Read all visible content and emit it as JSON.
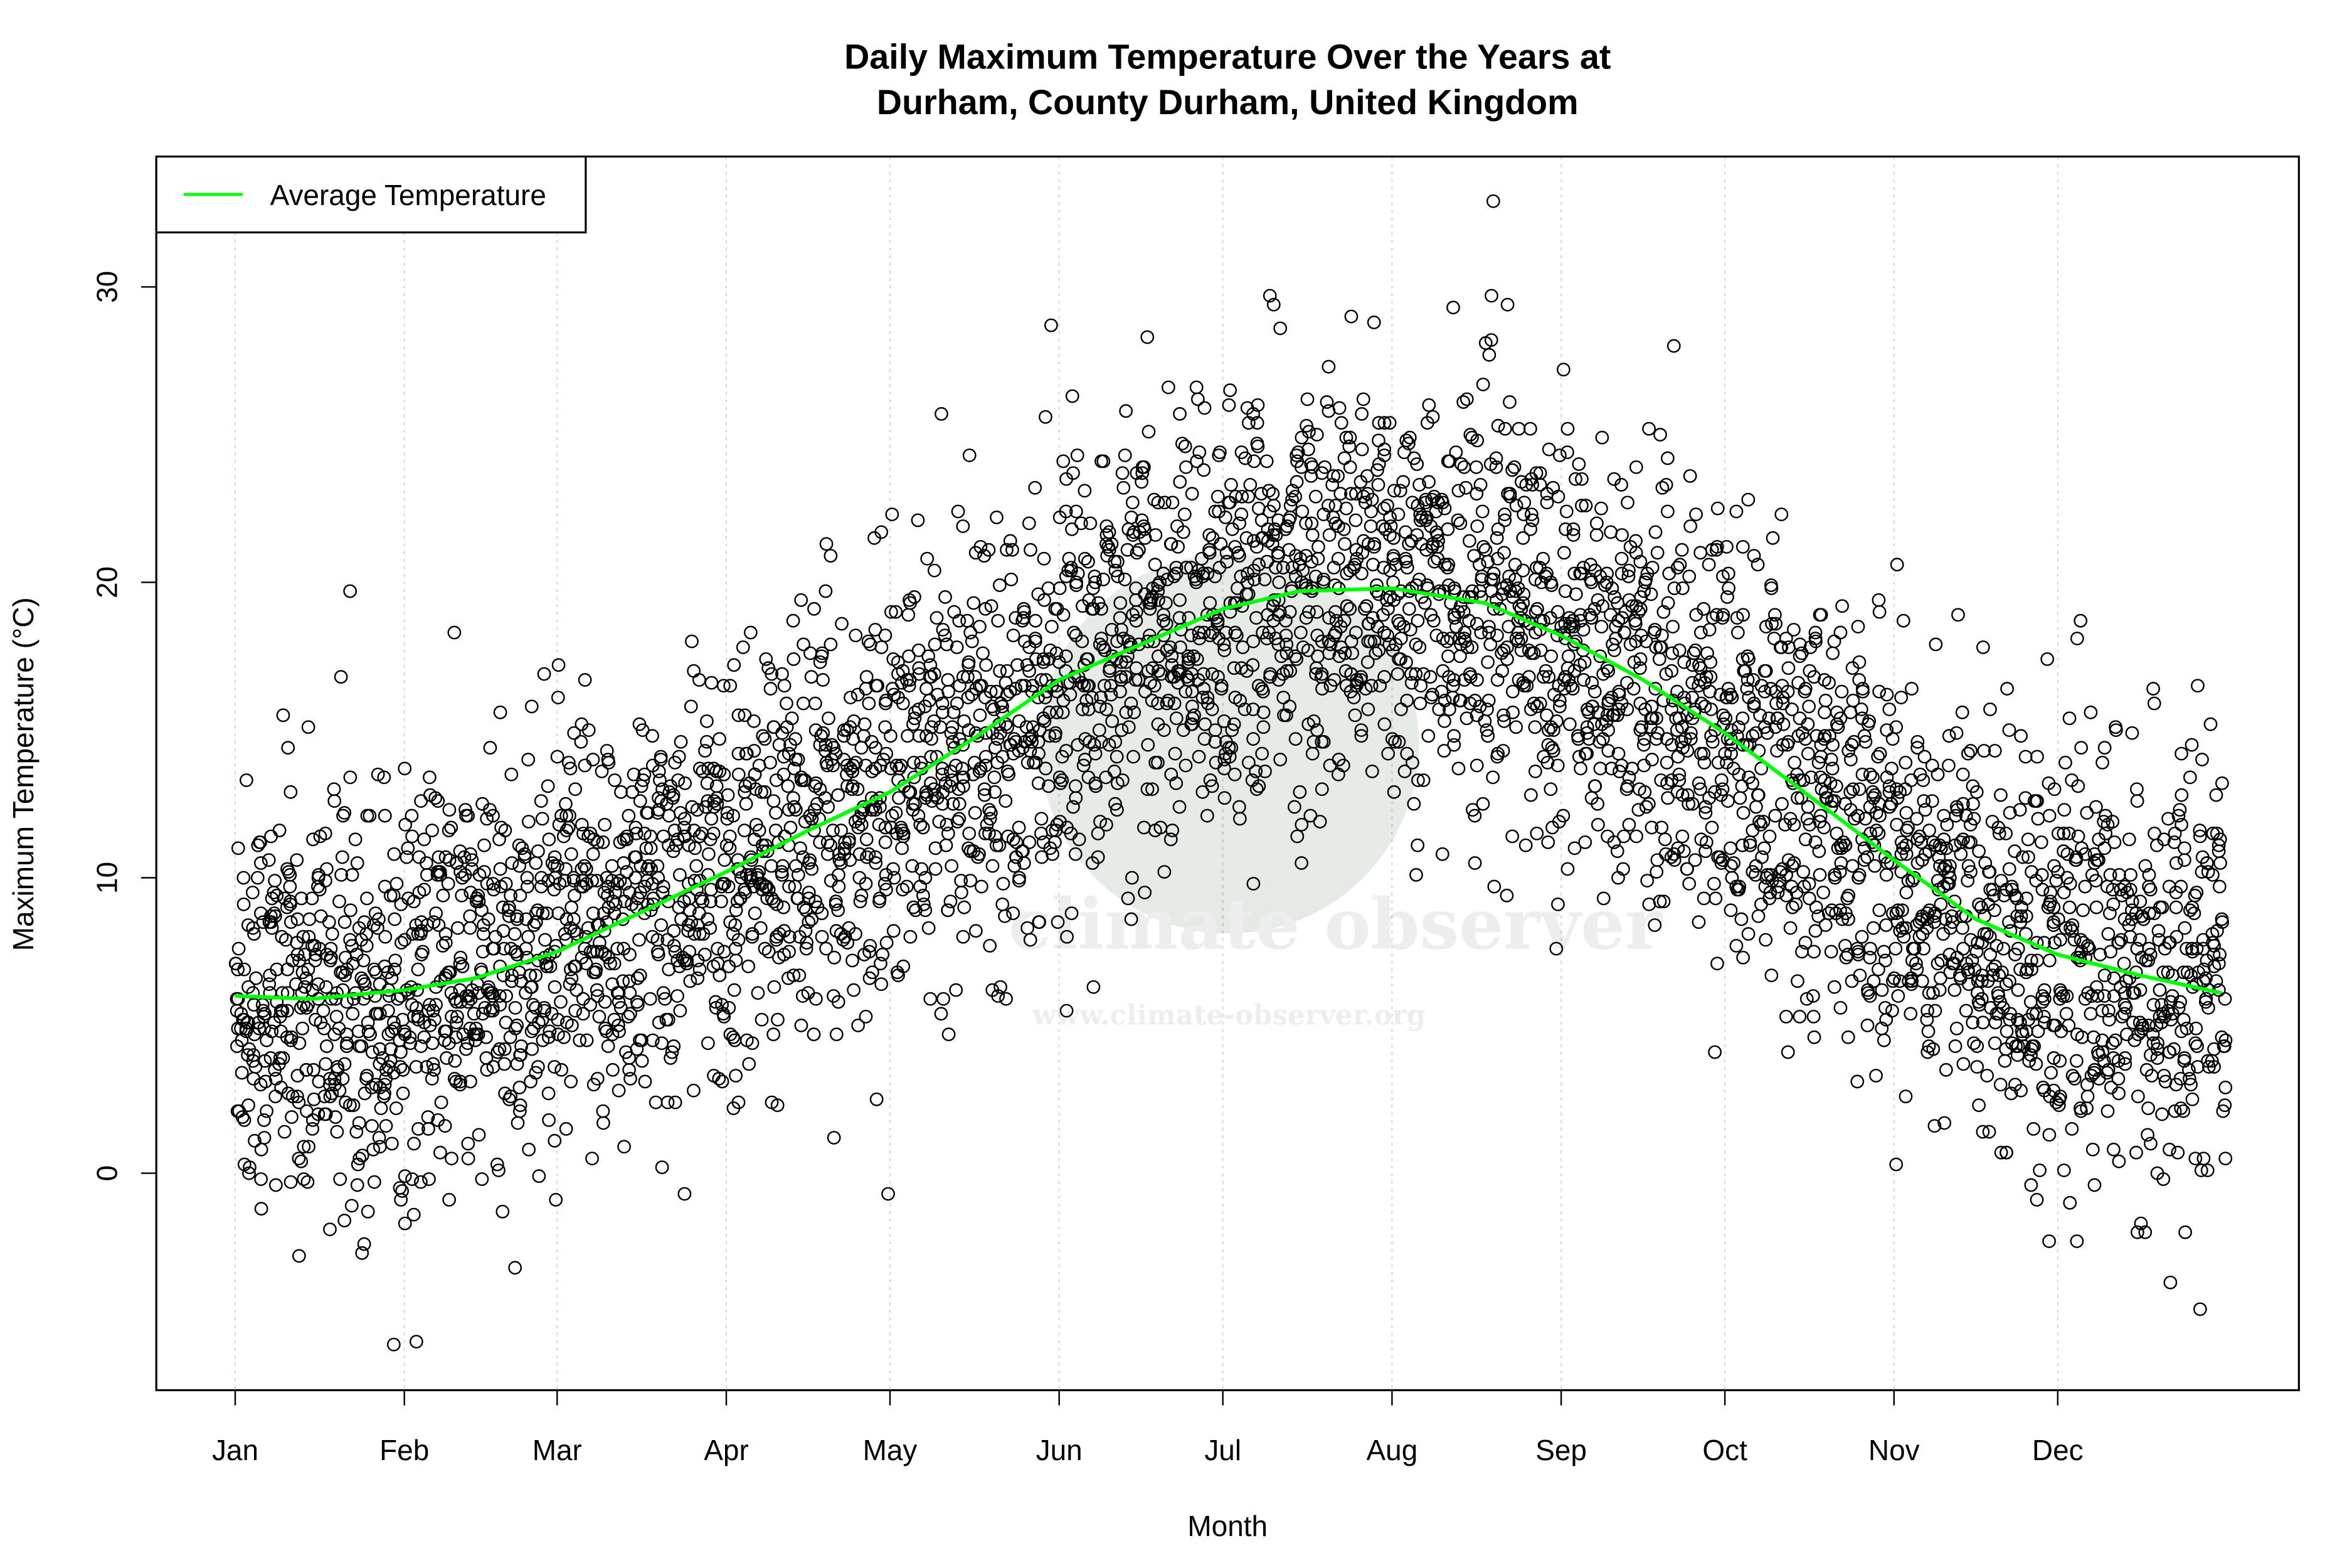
{
  "chart_data": {
    "type": "scatter",
    "title": "Daily Maximum Temperature Over the Years at\nDurham, County Durham, United Kingdom",
    "title_lines": [
      "Daily Maximum Temperature Over the Years at",
      "Durham, County Durham, United Kingdom"
    ],
    "xlabel": "Month",
    "ylabel": "Maximum Temperature (°C)",
    "x_unit": "day of year",
    "x_ticks": [
      {
        "label": "Jan",
        "day": 1
      },
      {
        "label": "Feb",
        "day": 32
      },
      {
        "label": "Mar",
        "day": 60
      },
      {
        "label": "Apr",
        "day": 91
      },
      {
        "label": "May",
        "day": 121
      },
      {
        "label": "Jun",
        "day": 152
      },
      {
        "label": "Jul",
        "day": 182
      },
      {
        "label": "Aug",
        "day": 213
      },
      {
        "label": "Sep",
        "day": 244
      },
      {
        "label": "Oct",
        "day": 274
      },
      {
        "label": "Nov",
        "day": 305
      },
      {
        "label": "Dec",
        "day": 335
      }
    ],
    "xlim": [
      1,
      365
    ],
    "ylim": [
      -7,
      34
    ],
    "y_ticks": [
      0,
      10,
      20,
      30
    ],
    "grid": "vertical dotted at month ticks",
    "legend": {
      "position": "top-left",
      "entries": [
        {
          "label": "Average Temperature",
          "color": "#00ff00"
        }
      ]
    },
    "points": {
      "style": "open circles",
      "color": "#000000",
      "approx_y_range": [
        -5.8,
        32.9
      ]
    },
    "series": [
      {
        "name": "Average Temperature",
        "color": "#00ff00",
        "x": [
          1,
          15,
          32,
          45,
          60,
          75,
          91,
          106,
          121,
          137,
          152,
          167,
          182,
          196,
          213,
          230,
          244,
          259,
          274,
          290,
          305,
          320,
          335,
          350,
          365
        ],
        "y": [
          6.0,
          5.9,
          6.2,
          6.6,
          7.5,
          8.8,
          10.2,
          11.6,
          12.9,
          14.8,
          16.7,
          17.9,
          19.1,
          19.7,
          19.8,
          19.3,
          18.2,
          16.7,
          14.9,
          12.7,
          10.6,
          8.6,
          7.4,
          6.7,
          6.1
        ]
      }
    ]
  },
  "watermark": {
    "brand": "climate observer",
    "url": "www.climate-observer.org"
  }
}
